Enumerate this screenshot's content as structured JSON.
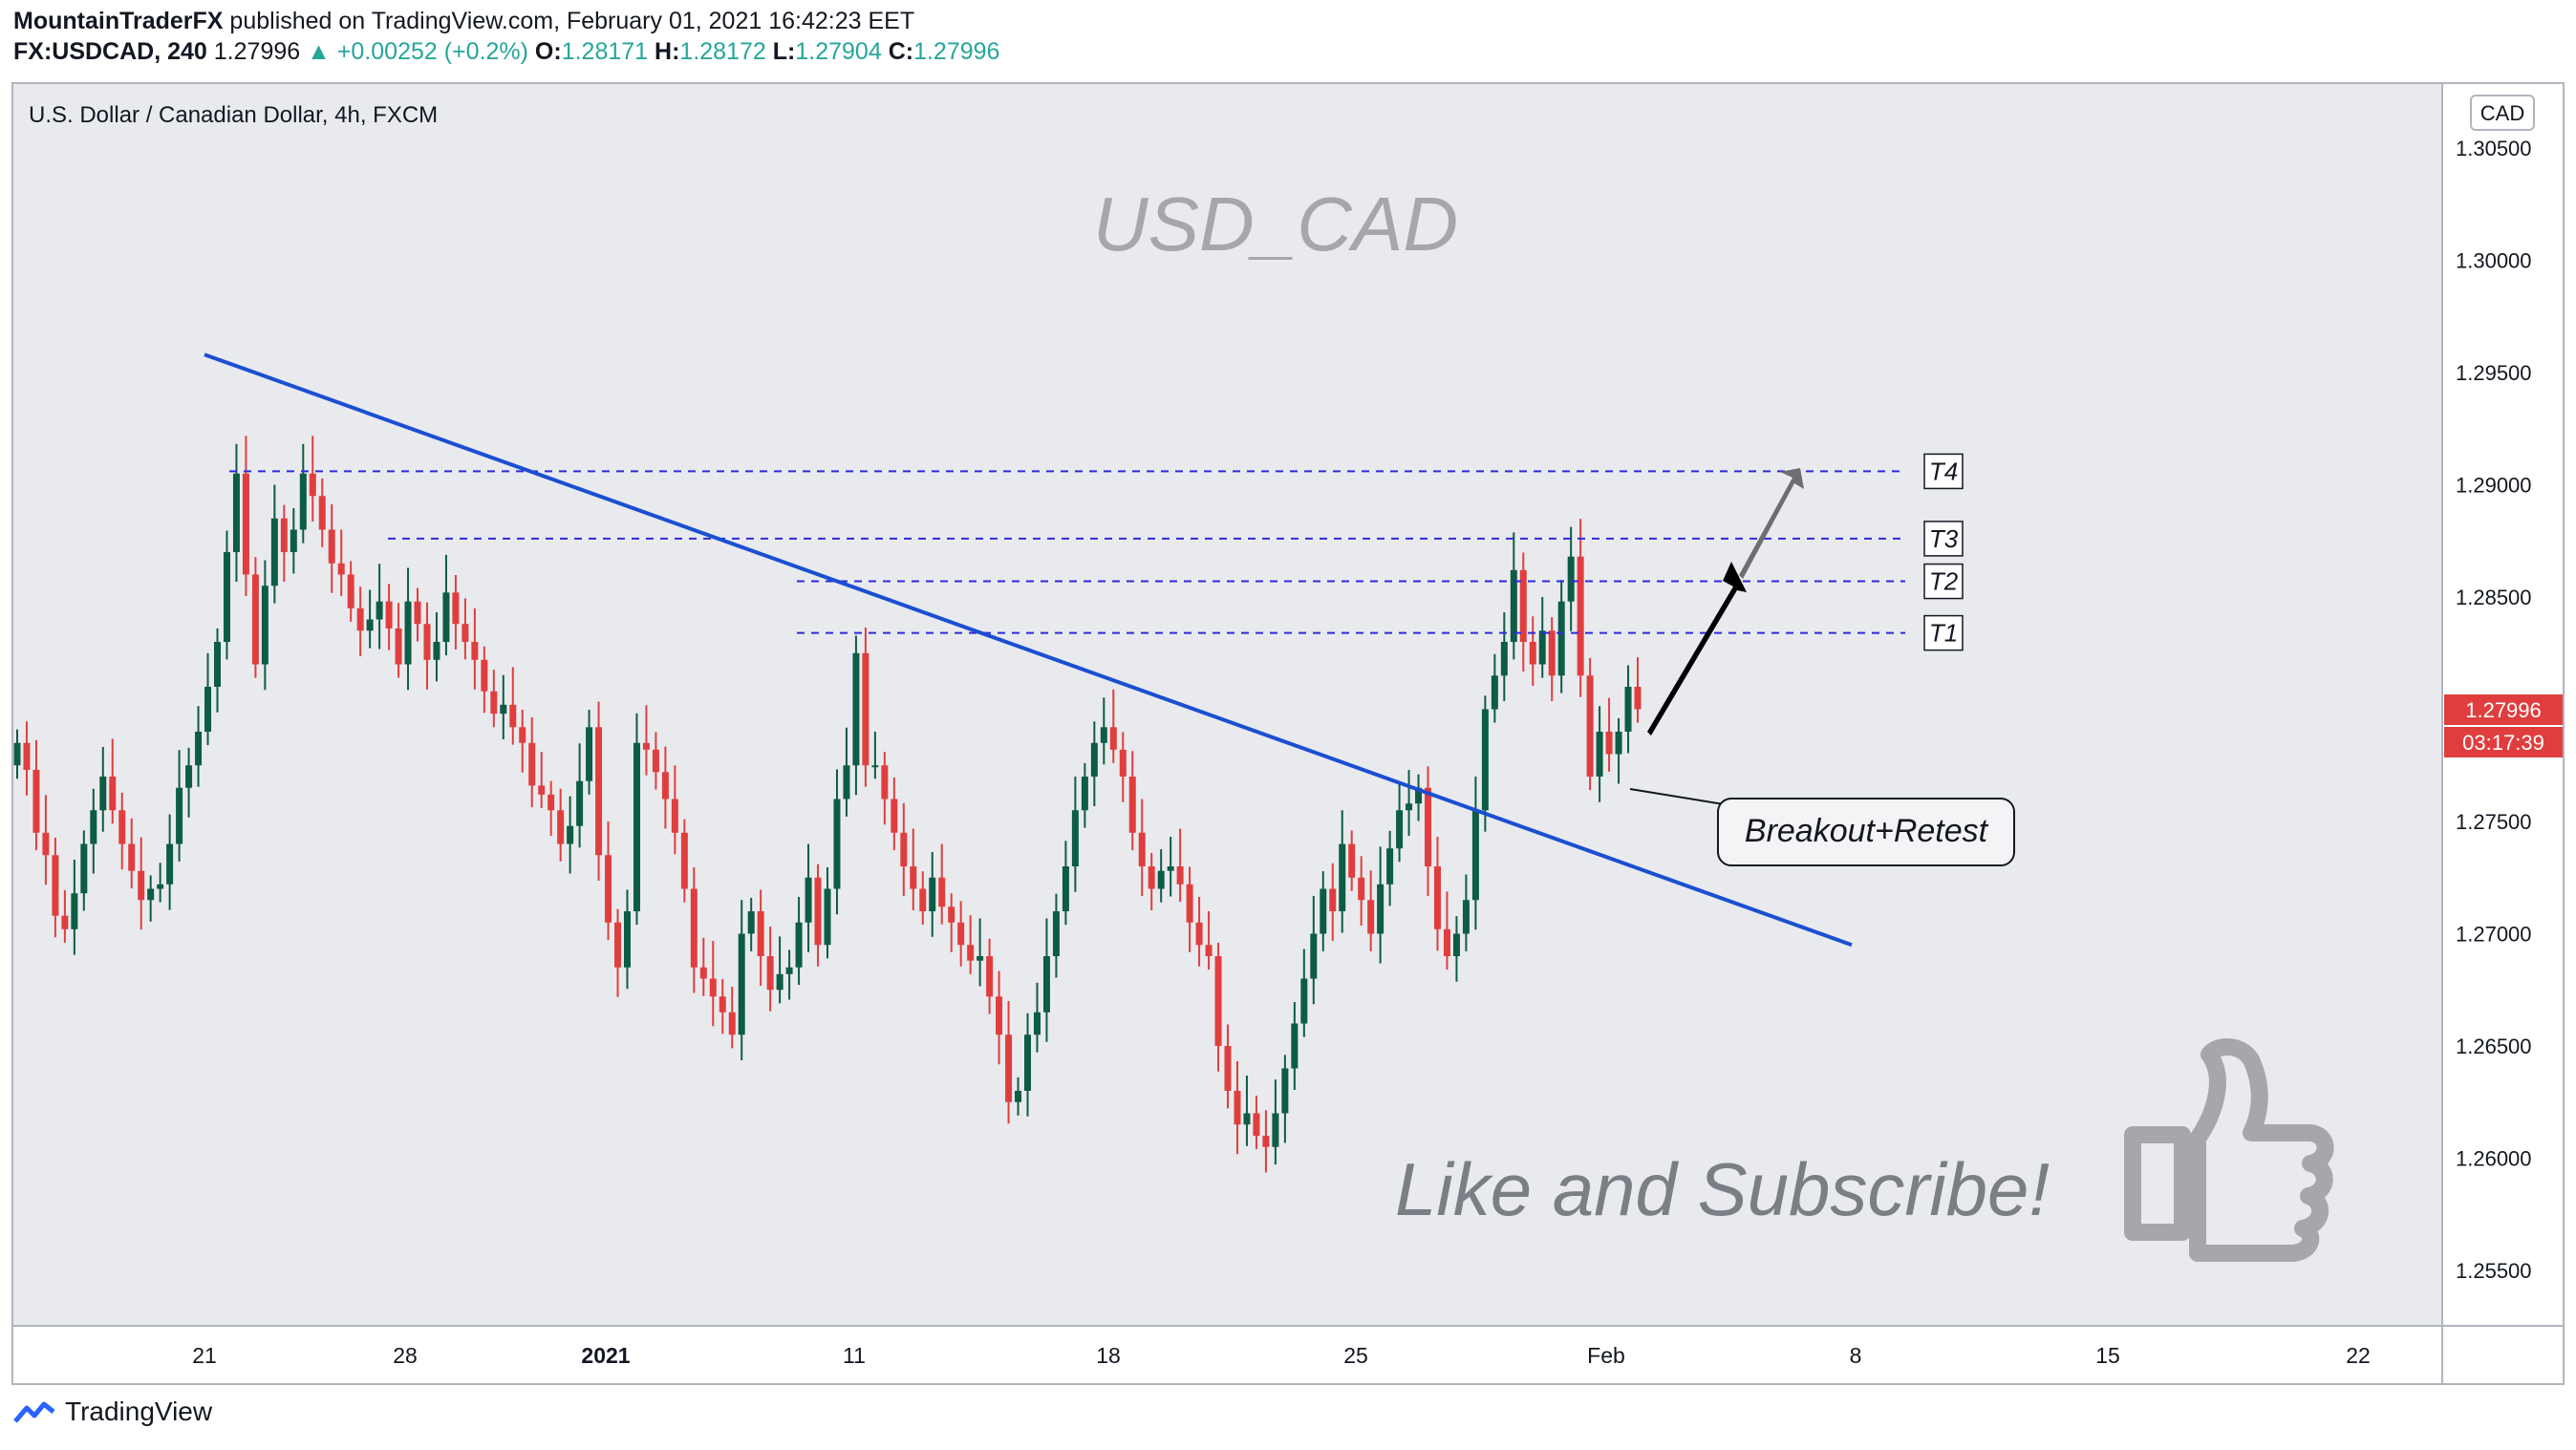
{
  "header": {
    "author": "MountainTraderFX",
    "published_text": "published on TradingView.com, February 01, 2021 16:42:23 EET",
    "symbol": "FX:USDCAD, 240",
    "last": "1.27996",
    "change": "+0.00252 (+0.2%)",
    "open_label": "O:",
    "open": "1.28171",
    "high_label": "H:",
    "high": "1.28172",
    "low_label": "L:",
    "low": "1.27904",
    "close_label": "C:",
    "close": "1.27996"
  },
  "chart_data": {
    "type": "candlestick",
    "title": "U.S. Dollar / Canadian Dollar, 4h, FXCM",
    "watermark": "USD_CAD",
    "currency": "CAD",
    "x_tick_labels": [
      "21",
      "28",
      "2021",
      "11",
      "18",
      "25",
      "Feb",
      "8",
      "15",
      "22"
    ],
    "y_tick_labels": [
      "1.30500",
      "1.30000",
      "1.29500",
      "1.29000",
      "1.28500",
      "1.28000",
      "1.27500",
      "1.27000",
      "1.26500",
      "1.26000",
      "1.25500"
    ],
    "ylim": [
      1.252,
      1.309
    ],
    "y_ticks": [
      1.305,
      1.3,
      1.295,
      1.29,
      1.285,
      1.28,
      1.275,
      1.27,
      1.265,
      1.26,
      1.255
    ],
    "current_price": "1.27996",
    "current_price_value": 1.27996,
    "countdown": "03:17:39",
    "colors": {
      "up": "#0d5c45",
      "down": "#e03e3e",
      "trendline": "#1a4fd1",
      "levels": "#2d2bd6",
      "price_tag": "#e03e3e",
      "axis_text": "#131722"
    },
    "candles_close": [
      1.2785,
      1.2773,
      1.2745,
      1.2735,
      1.2708,
      1.2702,
      1.2718,
      1.274,
      1.2755,
      1.277,
      1.2755,
      1.274,
      1.2728,
      1.2715,
      1.272,
      1.2722,
      1.274,
      1.2765,
      1.2775,
      1.279,
      1.281,
      1.283,
      1.287,
      1.2905,
      1.286,
      1.282,
      1.2855,
      1.2885,
      1.287,
      1.288,
      1.2905,
      1.2895,
      1.288,
      1.2865,
      1.286,
      1.2845,
      1.2835,
      1.284,
      1.2848,
      1.2836,
      1.282,
      1.2848,
      1.2838,
      1.2822,
      1.283,
      1.2852,
      1.2838,
      1.283,
      1.2822,
      1.2808,
      1.2798,
      1.2802,
      1.2792,
      1.2785,
      1.2766,
      1.2762,
      1.2755,
      1.274,
      1.2748,
      1.2768,
      1.2792,
      1.2735,
      1.2705,
      1.2685,
      1.271,
      1.2785,
      1.2782,
      1.2772,
      1.276,
      1.2745,
      1.272,
      1.2685,
      1.268,
      1.2672,
      1.2665,
      1.2655,
      1.27,
      1.271,
      1.269,
      1.2675,
      1.2682,
      1.2685,
      1.2705,
      1.2725,
      1.2695,
      1.272,
      1.276,
      1.2775,
      1.2825,
      1.2775,
      1.2775,
      1.276,
      1.2745,
      1.273,
      1.272,
      1.271,
      1.2725,
      1.2712,
      1.2705,
      1.2695,
      1.2688,
      1.269,
      1.2672,
      1.2655,
      1.2625,
      1.263,
      1.2655,
      1.2665,
      1.269,
      1.271,
      1.273,
      1.2755,
      1.277,
      1.2785,
      1.2792,
      1.2782,
      1.277,
      1.2745,
      1.273,
      1.272,
      1.2728,
      1.273,
      1.2722,
      1.2705,
      1.2695,
      1.269,
      1.265,
      1.263,
      1.2615,
      1.262,
      1.261,
      1.2605,
      1.262,
      1.264,
      1.266,
      1.268,
      1.27,
      1.272,
      1.271,
      1.274,
      1.2725,
      1.2715,
      1.27,
      1.2722,
      1.2738,
      1.2755,
      1.2758,
      1.2765,
      1.273,
      1.2702,
      1.269,
      1.27,
      1.2715,
      1.2755,
      1.28,
      1.2815,
      1.283,
      1.2862,
      1.283,
      1.282,
      1.2835,
      1.2815,
      1.2848,
      1.2868,
      1.2815,
      1.277,
      1.279,
      1.278,
      1.279,
      1.281,
      1.28
    ],
    "trendline": [
      [
        "Dec 21",
        1.2958
      ],
      [
        "Feb 7",
        1.2695
      ]
    ],
    "levels": [
      {
        "label": "T1",
        "value": 1.2834
      },
      {
        "label": "T2",
        "value": 1.2857
      },
      {
        "label": "T3",
        "value": 1.2876
      },
      {
        "label": "T4",
        "value": 1.2906
      }
    ],
    "annotations": [
      "Breakout+Retest",
      "Like and Subscribe!"
    ]
  },
  "footer": {
    "brand": "TradingView",
    "logo_icon": "tradingview-logo-icon",
    "like_icon": "thumbs-up-icon"
  }
}
